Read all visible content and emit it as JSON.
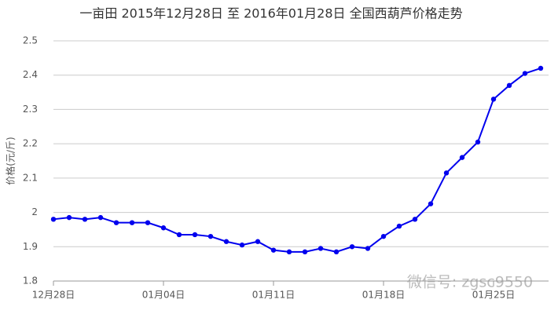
{
  "chart_data": {
    "type": "line",
    "title": "一亩田 2015年12月28日 至 2016年01月28日 全国西葫芦价格走势",
    "y_label": "价格(元/斤)",
    "watermark": "微信号: zgsc9550",
    "categories": [
      "12月28日",
      null,
      null,
      null,
      null,
      null,
      null,
      "01月04日",
      null,
      null,
      null,
      null,
      null,
      null,
      "01月11日",
      null,
      null,
      null,
      null,
      null,
      null,
      "01月18日",
      null,
      null,
      null,
      null,
      null,
      null,
      "01月25日",
      null,
      null,
      null
    ],
    "series": [
      {
        "name": "西葫芦",
        "color": "#0000ee",
        "values": [
          1.98,
          1.985,
          1.98,
          1.985,
          1.97,
          1.97,
          1.97,
          1.955,
          1.935,
          1.935,
          1.93,
          1.915,
          1.905,
          1.915,
          1.89,
          1.885,
          1.885,
          1.895,
          1.885,
          1.9,
          1.895,
          1.93,
          1.96,
          1.98,
          2.025,
          2.115,
          2.16,
          2.205,
          2.33,
          2.37,
          2.405,
          2.42
        ]
      }
    ],
    "ylim": [
      1.8,
      2.5
    ],
    "yticks": [
      1.8,
      1.9,
      2,
      2.1,
      2.2,
      2.3,
      2.4,
      2.5
    ],
    "grid": true
  }
}
